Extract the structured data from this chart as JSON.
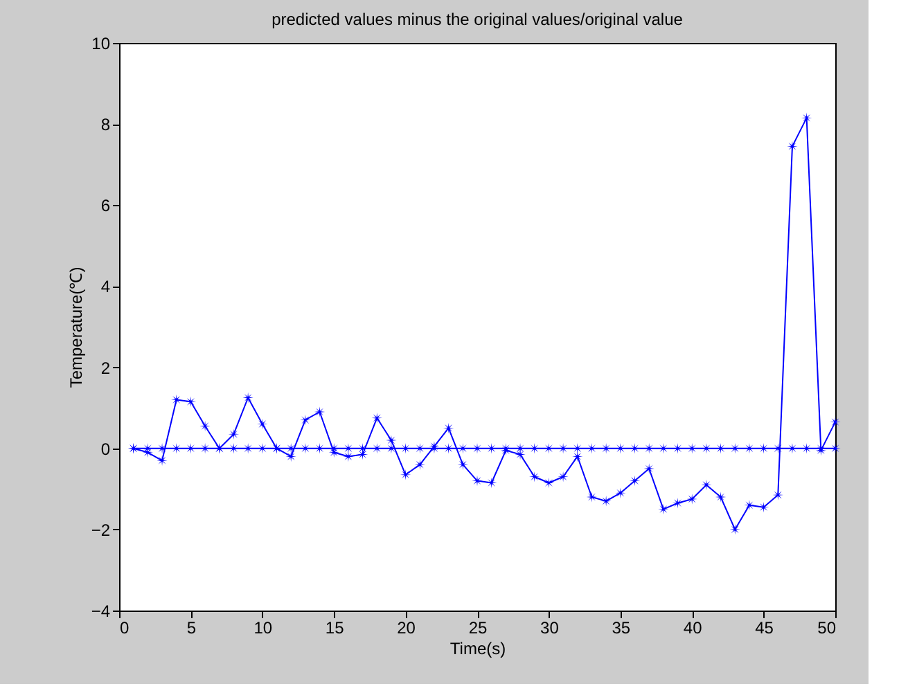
{
  "chart_data": {
    "type": "line",
    "title": "predicted values minus the original values/original value",
    "xlabel": "Time(s)",
    "ylabel": "Temperature(℃)",
    "x": [
      1,
      2,
      3,
      4,
      5,
      6,
      7,
      8,
      9,
      10,
      11,
      12,
      13,
      14,
      15,
      16,
      17,
      18,
      19,
      20,
      21,
      22,
      23,
      24,
      25,
      26,
      27,
      28,
      29,
      30,
      31,
      32,
      33,
      34,
      35,
      36,
      37,
      38,
      39,
      40,
      41,
      42,
      43,
      44,
      45,
      46,
      47,
      48,
      49,
      50
    ],
    "series": [
      {
        "color": "#0000ff",
        "values": [
          0,
          -0.1,
          -0.3,
          1.2,
          1.15,
          0.55,
          0,
          0.35,
          1.25,
          0.6,
          0,
          -0.2,
          0.7,
          0.9,
          -0.1,
          -0.2,
          -0.15,
          0.75,
          0.2,
          -0.65,
          -0.4,
          0.05,
          0.5,
          -0.4,
          -0.8,
          -0.85,
          -0.05,
          -0.15,
          -0.7,
          -0.85,
          -0.7,
          -0.2,
          -1.2,
          -1.3,
          -1.1,
          -0.8,
          -0.5,
          -1.5,
          -1.35,
          -1.25,
          -0.9,
          -1.2,
          -2.0,
          -1.4,
          -1.45,
          -1.15,
          7.45,
          8.15,
          -0.05,
          0.65
        ]
      },
      {
        "color": "#0000ff",
        "values": [
          0,
          0,
          0,
          0,
          0,
          0,
          0,
          0,
          0,
          0,
          0,
          0,
          0,
          0,
          0,
          0,
          0,
          0,
          0,
          0,
          0,
          0,
          0,
          0,
          0,
          0,
          0,
          0,
          0,
          0,
          0,
          0,
          0,
          0,
          0,
          0,
          0,
          0,
          0,
          0,
          0,
          0,
          0,
          0,
          0,
          0,
          0,
          0,
          0,
          0
        ]
      }
    ],
    "xlim": [
      0,
      50
    ],
    "xticks": [
      0,
      5,
      10,
      15,
      20,
      25,
      30,
      35,
      40,
      45,
      50
    ],
    "ylim": [
      -4,
      10
    ],
    "yticks": [
      -4,
      -2,
      0,
      2,
      4,
      6,
      8,
      10
    ],
    "grid": false,
    "marker": "star",
    "line_style": "solid"
  }
}
